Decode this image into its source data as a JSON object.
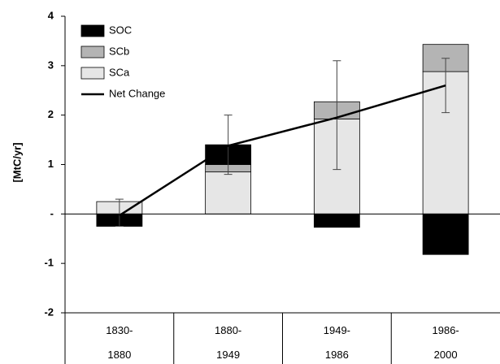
{
  "chart_data": {
    "type": "bar",
    "y_label": "[MtC/yr]",
    "categories": [
      "1830-1880",
      "1880-1949",
      "1949-1986",
      "1986-2000"
    ],
    "series": [
      {
        "name": "SOC",
        "color": "#000000",
        "values": [
          -0.25,
          0.4,
          -0.27,
          -0.82
        ]
      },
      {
        "name": "SCb",
        "color": "#b4b4b4",
        "values": [
          0,
          0.15,
          0.35,
          0.55
        ]
      },
      {
        "name": "SCa",
        "color": "#e6e6e6",
        "values": [
          0.25,
          0.85,
          1.92,
          2.88
        ]
      },
      {
        "name": "Net Change",
        "type": "line",
        "color": "#000000",
        "values": [
          -0.03,
          1.38,
          1.95,
          2.6
        ],
        "error_high": [
          0.3,
          2.0,
          3.1,
          3.15
        ],
        "error_low": [
          -0.25,
          0.8,
          0.9,
          2.05
        ]
      }
    ],
    "stack_order": [
      "SCa",
      "SCb",
      "SOC"
    ],
    "ylim": [
      -2,
      4
    ],
    "yticks": [
      -2,
      -1,
      {
        "value": 0,
        "label": "-"
      },
      1,
      2,
      3,
      4
    ],
    "legend": "top-left"
  }
}
